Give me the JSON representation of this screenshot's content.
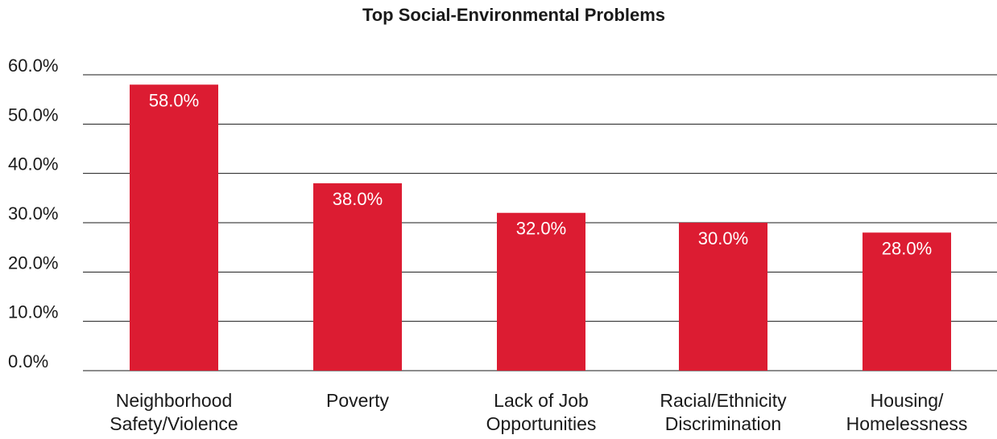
{
  "chart_data": {
    "type": "bar",
    "title": "Top Social-Environmental Problems",
    "categories": [
      [
        "Neighborhood",
        "Safety/Violence"
      ],
      [
        "Poverty"
      ],
      [
        "Lack of Job",
        "Opportunities"
      ],
      [
        "Racial/Ethnicity",
        "Discrimination"
      ],
      [
        "Housing/",
        "Homelessness"
      ]
    ],
    "values": [
      58.0,
      38.0,
      32.0,
      30.0,
      28.0
    ],
    "value_labels": [
      "58.0%",
      "38.0%",
      "32.0%",
      "30.0%",
      "28.0%"
    ],
    "ylim": [
      0,
      60
    ],
    "yticks": [
      0,
      10,
      20,
      30,
      40,
      50,
      60
    ],
    "ytick_labels": [
      "0.0%",
      "10.0%",
      "20.0%",
      "30.0%",
      "40.0%",
      "50.0%",
      "60.0%"
    ],
    "grid": true,
    "bar_color": "#dc1c32",
    "grid_color": "#1a1a1a"
  }
}
